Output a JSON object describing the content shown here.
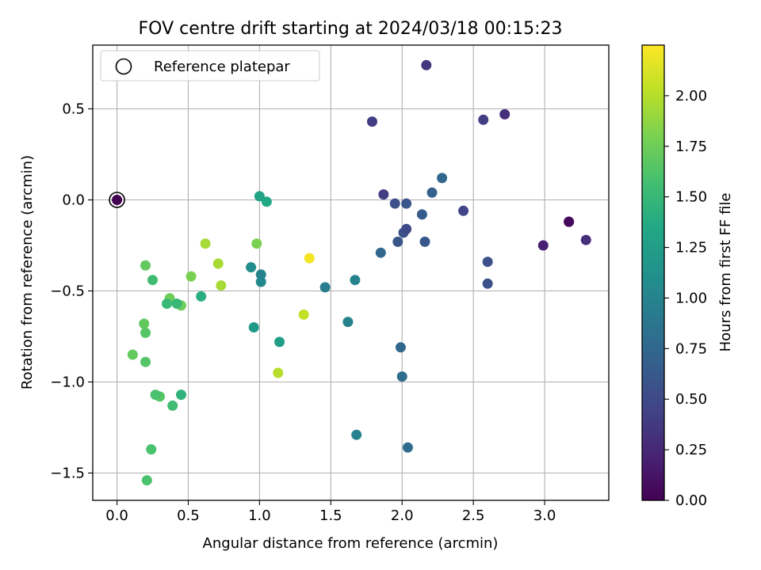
{
  "chart_data": {
    "type": "scatter",
    "title": "FOV centre drift starting at 2024/03/18 00:15:23",
    "xlabel": "Angular distance from reference (arcmin)",
    "ylabel": "Rotation from reference (arcmin)",
    "xlim": [
      -0.17,
      3.45
    ],
    "ylim": [
      -1.65,
      0.85
    ],
    "xticks": [
      0.0,
      0.5,
      1.0,
      1.5,
      2.0,
      2.5,
      3.0
    ],
    "xtick_labels": [
      "0.0",
      "0.5",
      "1.0",
      "1.5",
      "2.0",
      "2.5",
      "3.0"
    ],
    "yticks": [
      0.5,
      0.0,
      -0.5,
      -1.0,
      -1.5
    ],
    "ytick_labels": [
      "0.5",
      "0.0",
      "−0.5",
      "−1.0",
      "−1.5"
    ],
    "grid": true,
    "legend": {
      "placement": "top-left",
      "entries": [
        "Reference platepar"
      ]
    },
    "colorbar": {
      "label": "Hours from first FF file",
      "colormap": "viridis",
      "range": [
        0.0,
        2.25
      ],
      "ticks": [
        0.0,
        0.25,
        0.5,
        0.75,
        1.0,
        1.25,
        1.5,
        1.75,
        2.0
      ],
      "tick_labels": [
        "0.00",
        "0.25",
        "0.50",
        "0.75",
        "1.00",
        "1.25",
        "1.50",
        "1.75",
        "2.00"
      ]
    },
    "reference_point": {
      "x": 0.0,
      "y": 0.0,
      "c": 0.0
    },
    "points": [
      {
        "x": 0.0,
        "y": 0.0,
        "c": 0.0
      },
      {
        "x": 3.17,
        "y": -0.12,
        "c": 0.05
      },
      {
        "x": 3.17,
        "y": -0.12,
        "c": 0.1
      },
      {
        "x": 2.99,
        "y": -0.25,
        "c": 0.2
      },
      {
        "x": 3.29,
        "y": -0.22,
        "c": 0.3
      },
      {
        "x": 2.72,
        "y": 0.47,
        "c": 0.3
      },
      {
        "x": 2.57,
        "y": 0.44,
        "c": 0.4
      },
      {
        "x": 2.17,
        "y": 0.74,
        "c": 0.35
      },
      {
        "x": 1.79,
        "y": 0.43,
        "c": 0.4
      },
      {
        "x": 1.87,
        "y": 0.03,
        "c": 0.4
      },
      {
        "x": 2.43,
        "y": -0.06,
        "c": 0.45
      },
      {
        "x": 2.6,
        "y": -0.34,
        "c": 0.55
      },
      {
        "x": 2.6,
        "y": -0.46,
        "c": 0.55
      },
      {
        "x": 1.95,
        "y": -0.02,
        "c": 0.55
      },
      {
        "x": 2.03,
        "y": -0.02,
        "c": 0.6
      },
      {
        "x": 2.01,
        "y": -0.18,
        "c": 0.55
      },
      {
        "x": 2.03,
        "y": -0.16,
        "c": 0.5
      },
      {
        "x": 1.97,
        "y": -0.23,
        "c": 0.6
      },
      {
        "x": 2.14,
        "y": -0.08,
        "c": 0.65
      },
      {
        "x": 2.16,
        "y": -0.23,
        "c": 0.6
      },
      {
        "x": 2.21,
        "y": 0.04,
        "c": 0.7
      },
      {
        "x": 2.28,
        "y": 0.12,
        "c": 0.75
      },
      {
        "x": 1.85,
        "y": -0.29,
        "c": 0.75
      },
      {
        "x": 1.99,
        "y": -0.81,
        "c": 0.75
      },
      {
        "x": 2.0,
        "y": -0.97,
        "c": 0.8
      },
      {
        "x": 2.04,
        "y": -1.36,
        "c": 0.8
      },
      {
        "x": 1.46,
        "y": -0.48,
        "c": 0.95
      },
      {
        "x": 1.67,
        "y": -0.44,
        "c": 1.0
      },
      {
        "x": 1.62,
        "y": -0.67,
        "c": 1.0
      },
      {
        "x": 1.68,
        "y": -1.29,
        "c": 1.0
      },
      {
        "x": 1.01,
        "y": -0.41,
        "c": 1.0
      },
      {
        "x": 1.01,
        "y": -0.45,
        "c": 1.05
      },
      {
        "x": 0.94,
        "y": -0.37,
        "c": 1.1
      },
      {
        "x": 0.96,
        "y": -0.7,
        "c": 1.2
      },
      {
        "x": 1.14,
        "y": -0.78,
        "c": 1.25
      },
      {
        "x": 1.0,
        "y": 0.02,
        "c": 1.3
      },
      {
        "x": 1.05,
        "y": -0.01,
        "c": 1.35
      },
      {
        "x": 0.59,
        "y": -0.53,
        "c": 1.4
      },
      {
        "x": 0.45,
        "y": -1.07,
        "c": 1.45
      },
      {
        "x": 0.35,
        "y": -0.57,
        "c": 1.5
      },
      {
        "x": 0.42,
        "y": -0.57,
        "c": 1.5
      },
      {
        "x": 0.25,
        "y": -0.44,
        "c": 1.55
      },
      {
        "x": 0.39,
        "y": -1.13,
        "c": 1.55
      },
      {
        "x": 0.24,
        "y": -1.37,
        "c": 1.6
      },
      {
        "x": 0.21,
        "y": -1.54,
        "c": 1.6
      },
      {
        "x": 0.27,
        "y": -1.07,
        "c": 1.6
      },
      {
        "x": 0.3,
        "y": -1.08,
        "c": 1.65
      },
      {
        "x": 0.2,
        "y": -0.73,
        "c": 1.65
      },
      {
        "x": 0.2,
        "y": -0.89,
        "c": 1.65
      },
      {
        "x": 0.19,
        "y": -0.68,
        "c": 1.7
      },
      {
        "x": 0.2,
        "y": -0.36,
        "c": 1.7
      },
      {
        "x": 0.11,
        "y": -0.85,
        "c": 1.7
      },
      {
        "x": 0.45,
        "y": -0.58,
        "c": 1.75
      },
      {
        "x": 0.37,
        "y": -0.54,
        "c": 1.75
      },
      {
        "x": 0.52,
        "y": -0.42,
        "c": 1.8
      },
      {
        "x": 0.98,
        "y": -0.24,
        "c": 1.8
      },
      {
        "x": 0.62,
        "y": -0.24,
        "c": 1.95
      },
      {
        "x": 0.73,
        "y": -0.47,
        "c": 1.95
      },
      {
        "x": 0.71,
        "y": -0.35,
        "c": 1.95
      },
      {
        "x": 1.13,
        "y": -0.95,
        "c": 2.0
      },
      {
        "x": 1.31,
        "y": -0.63,
        "c": 2.05
      },
      {
        "x": 1.35,
        "y": -0.32,
        "c": 2.22
      }
    ]
  }
}
